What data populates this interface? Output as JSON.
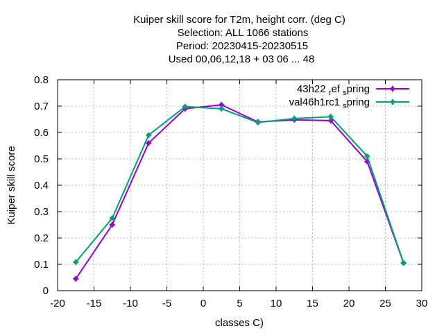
{
  "chart_data": {
    "type": "line",
    "title_lines": [
      "Kuiper skill score  for T2m, height corr. (deg C)",
      "Selection: ALL   1066 stations",
      "Period: 20230415-20230515",
      "Used  00,06,12,18  + 03 06 ... 48"
    ],
    "xlabel": "classes C)",
    "ylabel": "Kuiper skill score",
    "xlim": [
      -20,
      30
    ],
    "ylim": [
      0,
      0.8
    ],
    "xticks": [
      "-20",
      "-15",
      "-10",
      "-5",
      "0",
      "5",
      "10",
      "15",
      "20",
      "25",
      "30"
    ],
    "yticks": [
      "0",
      "0.1",
      "0.2",
      "0.3",
      "0.4",
      "0.5",
      "0.6",
      "0.7",
      "0.8"
    ],
    "grid": true,
    "legend_position": "top-right",
    "x": [
      -17.5,
      -12.5,
      -7.5,
      -2.5,
      2.5,
      7.5,
      12.5,
      17.5,
      22.5,
      27.5
    ],
    "series": [
      {
        "name": "43h22 ref spring",
        "legend_parts": {
          "base": "43h22 ",
          "sub1": "r",
          "mid": "ef ",
          "sub2": "s",
          "end": "pring"
        },
        "color": "#9400d3",
        "values": [
          0.045,
          0.25,
          0.56,
          0.69,
          0.705,
          0.64,
          0.648,
          0.645,
          0.49,
          0.105
        ]
      },
      {
        "name": "val46h1rc1 spring",
        "legend_parts": {
          "base": "val46h1rc1 ",
          "sub2": "s",
          "end": "pring"
        },
        "color": "#009e73",
        "values": [
          0.108,
          0.275,
          0.59,
          0.698,
          0.69,
          0.638,
          0.653,
          0.66,
          0.51,
          0.105
        ]
      }
    ]
  }
}
